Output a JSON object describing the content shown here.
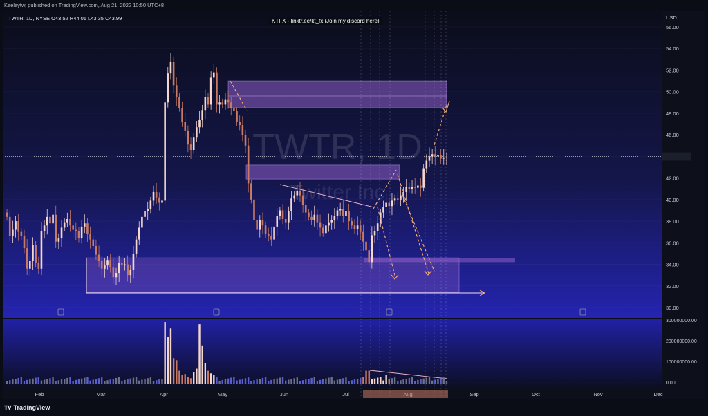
{
  "header": {
    "published": "Keeleytwj published on TradingView.com, Aug 21, 2022 10:50 UTC+8",
    "symbol_line": "TWTR, 1D, NYSE  O43.52  H44.01  L43.35  C43.99",
    "banner": "KTFX - linktr.ee/kt_fx (Join my discord here)",
    "currency": "USD"
  },
  "watermark": {
    "ticker": "TWTR, 1D",
    "company": "Twitter Inc"
  },
  "footer": {
    "brand": "TradingView"
  },
  "colors": {
    "background_top": "#0b0d1a",
    "background_bottom": "#1f1fa8",
    "up_candle": "#f3d6cc",
    "down_candle": "#c97a64",
    "zone_fill": "#8e5ec8",
    "arrow": "#f0a878",
    "current_price_line": "#ffffff"
  },
  "chart_data": {
    "type": "candlestick",
    "title": "TWTR, 1D",
    "ylabel": "USD",
    "ylim": [
      29,
      56.5
    ],
    "y_ticks": [
      "56.00",
      "54.00",
      "52.00",
      "50.00",
      "48.00",
      "46.00",
      "44.00",
      "42.00",
      "40.00",
      "38.00",
      "36.00",
      "34.00",
      "32.00",
      "30.00"
    ],
    "x_ticks": [
      "Feb",
      "Mar",
      "Apr",
      "May",
      "Jun",
      "Jul",
      "Aug",
      "Sep",
      "Oct",
      "Nov",
      "Dec"
    ],
    "date_range": [
      "2022-01-10",
      "2022-08-19"
    ],
    "closes": [
      38.4,
      36.6,
      37.2,
      38.0,
      37.0,
      36.6,
      35.5,
      33.6,
      34.3,
      35.8,
      34.1,
      33.6,
      37.1,
      37.6,
      38.4,
      37.8,
      38.6,
      36.1,
      36.4,
      37.4,
      37.9,
      38.2,
      37.6,
      37.2,
      37.1,
      36.4,
      37.5,
      37.8,
      36.8,
      36.3,
      35.7,
      34.9,
      34.3,
      33.6,
      33.9,
      34.4,
      33.7,
      32.8,
      33.2,
      34.1,
      33.9,
      34.0,
      33.0,
      33.5,
      35.0,
      36.3,
      37.4,
      38.4,
      38.9,
      39.1,
      39.9,
      40.7,
      40.2,
      39.7,
      39.9,
      49.0,
      51.7,
      52.8,
      50.6,
      49.5,
      48.5,
      47.2,
      46.4,
      45.1,
      44.6,
      45.8,
      46.7,
      47.4,
      48.3,
      49.5,
      48.8,
      51.3,
      51.8,
      48.8,
      49.0,
      48.8,
      49.3,
      49.0,
      48.5,
      48.2,
      47.2,
      46.9,
      46.0,
      45.0,
      41.5,
      40.0,
      38.1,
      37.2,
      38.1,
      37.6,
      36.8,
      36.6,
      36.3,
      37.5,
      38.5,
      39.0,
      38.2,
      37.9,
      38.9,
      40.1,
      40.4,
      40.8,
      40.4,
      39.5,
      38.8,
      38.4,
      38.1,
      38.6,
      37.9,
      37.4,
      36.9,
      37.6,
      37.9,
      38.1,
      38.5,
      39.0,
      39.1,
      38.5,
      38.9,
      38.0,
      37.6,
      37.3,
      37.6,
      37.0,
      36.1,
      35.3,
      34.2,
      36.7,
      37.1,
      37.8,
      38.8,
      39.3,
      39.7,
      39.4,
      39.9,
      40.1,
      40.0,
      40.4,
      40.7,
      41.2,
      41.0,
      41.2,
      41.1,
      41.3,
      41.1,
      42.9,
      43.6,
      44.0,
      44.2,
      44.0,
      44.1,
      43.8,
      43.9,
      43.9
    ],
    "volume_ticks": [
      "300000000.00",
      "200000000.00",
      "100000000.00",
      "0.00"
    ],
    "zones": [
      {
        "top": 51.0,
        "bottom": 48.5
      },
      {
        "top": 43.2,
        "bottom": 41.9
      },
      {
        "top": 34.6,
        "bottom": 31.4
      }
    ],
    "current_price": 43.99
  }
}
